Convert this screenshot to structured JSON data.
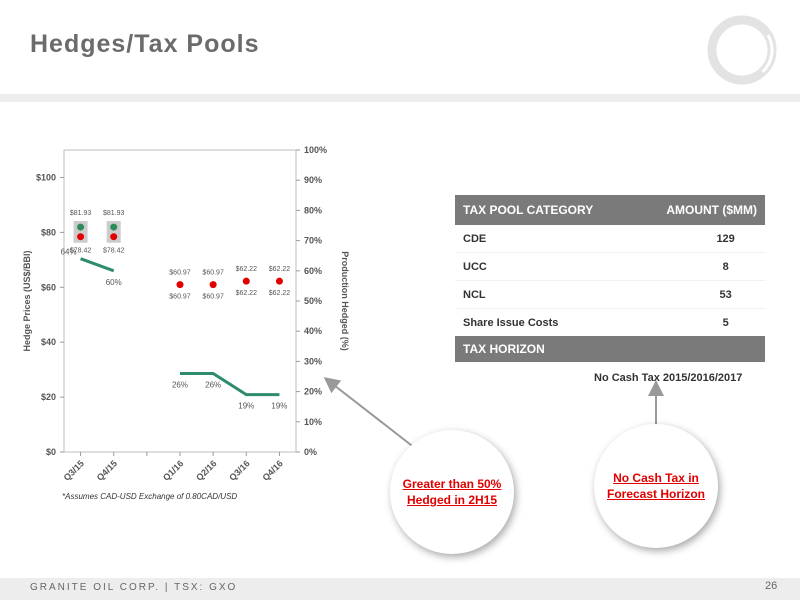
{
  "slide": {
    "title": "Hedges/Tax Pools",
    "footer": "GRANITE OIL CORP. | TSX: GXO",
    "page_number": "26",
    "footnote": "*Assumes CAD-USD Exchange of 0.80CAD/USD",
    "logo_icon": "ring-logo-icon"
  },
  "tax_table": {
    "header_category": "TAX POOL CATEGORY",
    "header_amount": "AMOUNT ($MM)",
    "rows": [
      {
        "category": "CDE",
        "amount": "129"
      },
      {
        "category": "UCC",
        "amount": "8"
      },
      {
        "category": "NCL",
        "amount": "53"
      },
      {
        "category": "Share Issue Costs",
        "amount": "5"
      }
    ],
    "horizon_header": "TAX HORIZON",
    "horizon_text": "No Cash Tax 2015/2016/2017"
  },
  "callouts": {
    "hedged": [
      "Greater than 50%",
      "Hedged in 2H15"
    ],
    "no_cash_tax": [
      "No Cash Tax in",
      "Forecast Horizon"
    ]
  },
  "chart_data": {
    "type": "scatter",
    "categories": [
      "Q3/15",
      "Q4/15",
      "",
      "Q1/16",
      "Q2/16",
      "Q3/16",
      "Q4/16"
    ],
    "ylabel": "Hedge Prices (US$/BBl)",
    "ylabel_right": "Production Hedged (%)",
    "ylim": [
      0,
      110
    ],
    "ylim_right": [
      0,
      100
    ],
    "yticks": [
      0,
      20,
      40,
      60,
      80,
      100
    ],
    "yticklabels": [
      "$0",
      "$20",
      "$40",
      "$60",
      "$80",
      "$100"
    ],
    "yticks_right": [
      0,
      10,
      20,
      30,
      40,
      50,
      60,
      70,
      80,
      90,
      100
    ],
    "yticklabels_right": [
      "0%",
      "10%",
      "20%",
      "30%",
      "40%",
      "50%",
      "60%",
      "70%",
      "80%",
      "90%",
      "100%"
    ],
    "grid": false,
    "colors": {
      "price_marker": "#e00000",
      "price_box": "#cccccc",
      "upper_marker": "#2e8b57",
      "hedged_line": "#2e8b6b"
    },
    "price_markers": [
      {
        "x": "Q3/15",
        "upper": 81.93,
        "lower": 78.42,
        "upper_label": "$81.93",
        "lower_label": "$78.42",
        "boxed": true
      },
      {
        "x": "Q4/15",
        "upper": 81.93,
        "lower": 78.42,
        "upper_label": "$81.93",
        "lower_label": "$78.42",
        "boxed": true
      },
      {
        "x": "Q1/16",
        "upper": 60.97,
        "lower": 60.97,
        "upper_label": "$60.97",
        "lower_label": "$60.97",
        "boxed": false
      },
      {
        "x": "Q2/16",
        "upper": 60.97,
        "lower": 60.97,
        "upper_label": "$60.97",
        "lower_label": "$60.97",
        "boxed": false
      },
      {
        "x": "Q3/16",
        "upper": 62.22,
        "lower": 62.22,
        "upper_label": "$62.22",
        "lower_label": "$62.22",
        "boxed": false
      },
      {
        "x": "Q4/16",
        "upper": 62.22,
        "lower": 62.22,
        "upper_label": "$62.22",
        "lower_label": "$62.22",
        "boxed": false
      }
    ],
    "hedged_series": [
      {
        "segment": [
          {
            "x": "Q3/15",
            "value": 64,
            "label": "64%"
          },
          {
            "x": "Q4/15",
            "value": 60,
            "label": "60%"
          }
        ]
      },
      {
        "segment": [
          {
            "x": "Q1/16",
            "value": 26,
            "label": "26%"
          },
          {
            "x": "Q2/16",
            "value": 26,
            "label": "26%"
          },
          {
            "x": "Q3/16",
            "value": 19,
            "label": "19%"
          },
          {
            "x": "Q4/16",
            "value": 19,
            "label": "19%"
          }
        ]
      }
    ]
  }
}
